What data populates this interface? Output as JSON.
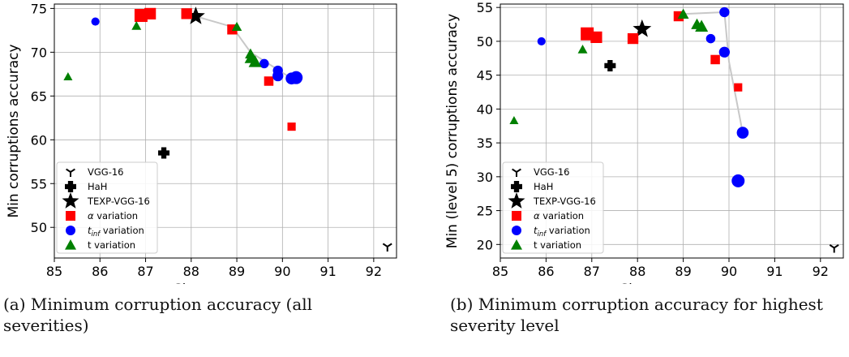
{
  "captions": [
    "(a) Minimum corruption accuracy (all severities)",
    "(b) Minimum corruption accuracy for highest severity level"
  ],
  "legend_labels": [
    "VGG-16",
    "HaH",
    "TEXP-VGG-16",
    "α variation",
    "t_inf variation",
    "t variation"
  ],
  "colors": {
    "alpha": "#ff0000",
    "tinf": "#0000ff",
    "t": "#008000",
    "front": "#c8c8c8",
    "marker": "#000000"
  },
  "chart_data": [
    {
      "type": "scatter",
      "xlabel": "Clean accuracy",
      "ylabel": "Min corruptions accuracy",
      "xlim": [
        85,
        92.5
      ],
      "ylim": [
        46.5,
        75.5
      ],
      "xticks": [
        85,
        86,
        87,
        88,
        89,
        90,
        91,
        92
      ],
      "yticks": [
        50,
        55,
        60,
        65,
        70,
        75
      ],
      "grid": true,
      "legend_position": "lower left",
      "series": [
        {
          "name": "VGG-16",
          "marker": "tri",
          "points": [
            [
              92.3,
              47.8
            ]
          ]
        },
        {
          "name": "HaH",
          "marker": "plus",
          "points": [
            [
              87.4,
              58.5
            ]
          ]
        },
        {
          "name": "TEXP-VGG-16",
          "marker": "star",
          "points": [
            [
              88.1,
              74.1
            ]
          ]
        },
        {
          "name": "α variation",
          "marker": "square",
          "points": [
            [
              86.9,
              74.2
            ],
            [
              87.1,
              74.4
            ],
            [
              87.9,
              74.4
            ],
            [
              88.9,
              72.6
            ],
            [
              89.7,
              66.7
            ],
            [
              90.2,
              61.5
            ]
          ],
          "sizes": [
            1.0,
            0.8,
            0.7,
            0.6,
            0.5,
            0.35
          ]
        },
        {
          "name": "t_inf variation",
          "marker": "circle",
          "points": [
            [
              85.9,
              73.5
            ],
            [
              89.6,
              68.7
            ],
            [
              89.9,
              67.9
            ],
            [
              89.9,
              67.3
            ],
            [
              90.2,
              67.0
            ],
            [
              90.3,
              67.1
            ]
          ],
          "sizes": [
            0.35,
            0.5,
            0.6,
            0.7,
            0.85,
            1.0
          ]
        },
        {
          "name": "t variation",
          "marker": "triangle",
          "points": [
            [
              85.3,
              67.2
            ],
            [
              86.8,
              73.0
            ],
            [
              89.0,
              72.9
            ],
            [
              89.3,
              69.8
            ],
            [
              89.3,
              69.3
            ],
            [
              89.4,
              68.9
            ]
          ],
          "sizes": [
            0.45,
            0.55,
            0.6,
            0.75,
            0.85,
            1.0
          ]
        }
      ],
      "front_line": [
        [
          88.1,
          74.1
        ],
        [
          88.9,
          72.9
        ],
        [
          89.3,
          70.0
        ],
        [
          90.2,
          67.0
        ]
      ]
    },
    {
      "type": "scatter",
      "xlabel": "Clean accuracy",
      "ylabel": "Min (level 5) corruptions accuracy",
      "xlim": [
        85,
        92.5
      ],
      "ylim": [
        18,
        55.5
      ],
      "xticks": [
        85,
        86,
        87,
        88,
        89,
        90,
        91,
        92
      ],
      "yticks": [
        20,
        25,
        30,
        35,
        40,
        45,
        50,
        55
      ],
      "grid": true,
      "legend_position": "lower left",
      "series": [
        {
          "name": "VGG-16",
          "marker": "tri",
          "points": [
            [
              92.3,
              19.5
            ]
          ]
        },
        {
          "name": "HaH",
          "marker": "plus",
          "points": [
            [
              87.4,
              46.4
            ]
          ]
        },
        {
          "name": "TEXP-VGG-16",
          "marker": "star",
          "points": [
            [
              88.1,
              51.8
            ]
          ]
        },
        {
          "name": "α variation",
          "marker": "square",
          "points": [
            [
              86.9,
              51.1
            ],
            [
              87.1,
              50.6
            ],
            [
              87.9,
              50.4
            ],
            [
              88.9,
              53.7
            ],
            [
              89.7,
              47.3
            ],
            [
              90.2,
              43.2
            ]
          ],
          "sizes": [
            1.0,
            0.8,
            0.7,
            0.6,
            0.5,
            0.35
          ]
        },
        {
          "name": "t_inf variation",
          "marker": "circle",
          "points": [
            [
              85.9,
              50.0
            ],
            [
              89.6,
              50.4
            ],
            [
              89.9,
              54.3
            ],
            [
              89.9,
              48.4
            ],
            [
              90.2,
              29.4
            ],
            [
              90.3,
              36.5
            ]
          ],
          "sizes": [
            0.35,
            0.5,
            0.6,
            0.7,
            1.0,
            0.85
          ]
        },
        {
          "name": "t variation",
          "marker": "triangle",
          "points": [
            [
              85.3,
              38.3
            ],
            [
              86.8,
              48.8
            ],
            [
              89.0,
              54.0
            ],
            [
              89.3,
              52.5
            ],
            [
              89.4,
              52.2
            ]
          ],
          "sizes": [
            0.45,
            0.55,
            0.75,
            0.85,
            1.0
          ]
        }
      ],
      "front_line": [
        [
          88.9,
          54.0
        ],
        [
          89.9,
          54.3
        ],
        [
          90.0,
          47.0
        ],
        [
          90.3,
          36.5
        ]
      ]
    }
  ]
}
